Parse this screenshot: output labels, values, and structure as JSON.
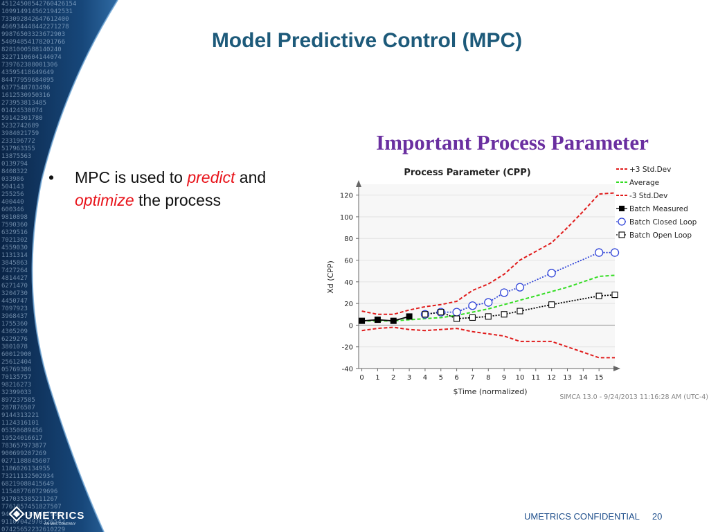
{
  "slide": {
    "title": "Model Predictive Control (MPC)",
    "bullet": {
      "marker": "•",
      "part1": "MPC is used to ",
      "predict": "predict",
      "part2": " and",
      "optimize": "optimize",
      "part3": " the process"
    },
    "chart_heading": "Important Process Parameter",
    "footer": "UMETRICS CONFIDENTIAL",
    "page_number": "20",
    "logo_text": "UMETRICS",
    "logo_sub": "AN MKS COMPANY",
    "colors": {
      "title": "#1d5a7a",
      "accent_red": "#e8141b",
      "heading": "#6a2fa0",
      "sidebar": "#0b2c55"
    }
  },
  "chart_data": {
    "type": "line",
    "title": "Process Parameter (CPP)",
    "xlabel": "$Time (normalized)",
    "ylabel": "Xd (CPP)",
    "footnote": "SIMCA 13.0 - 9/24/2013 11:16:28 AM (UTC-4)",
    "xlim": [
      -0.2,
      16
    ],
    "ylim": [
      -40,
      130
    ],
    "x_ticks": [
      0,
      1,
      2,
      3,
      4,
      5,
      6,
      7,
      8,
      9,
      10,
      11,
      12,
      13,
      14,
      15
    ],
    "y_ticks": [
      -40,
      -20,
      0,
      20,
      40,
      60,
      80,
      100,
      120
    ],
    "grid": true,
    "legend_position": "top-right",
    "series": [
      {
        "name": "+3 Std.Dev",
        "style": "dashed",
        "color": "#e01b1b",
        "x": [
          0,
          1,
          2,
          3,
          4,
          5,
          6,
          7,
          8,
          9,
          10,
          11,
          12,
          13,
          14,
          15,
          16
        ],
        "y": [
          13,
          10,
          10,
          14,
          17,
          19,
          22,
          32,
          38,
          47,
          60,
          68,
          76,
          90,
          105,
          121,
          122
        ]
      },
      {
        "name": "Average",
        "style": "dashed",
        "color": "#33dd22",
        "x": [
          0,
          1,
          2,
          3,
          4,
          5,
          6,
          7,
          8,
          9,
          10,
          11,
          12,
          13,
          14,
          15,
          16
        ],
        "y": [
          4,
          4,
          4,
          5,
          6,
          7,
          9,
          12,
          15,
          19,
          23,
          27,
          31,
          35,
          40,
          45,
          46
        ]
      },
      {
        "name": "-3 Std.Dev",
        "style": "dashed",
        "color": "#e01b1b",
        "x": [
          0,
          1,
          2,
          3,
          4,
          5,
          6,
          7,
          8,
          9,
          10,
          11,
          12,
          13,
          14,
          15,
          16
        ],
        "y": [
          -5,
          -3,
          -2,
          -4,
          -5,
          -4,
          -3,
          -6,
          -8,
          -10,
          -15,
          -15,
          -15,
          -20,
          -25,
          -30,
          -30
        ]
      },
      {
        "name": "Batch Measured",
        "marker": "filled-square",
        "color": "#000000",
        "x": [
          0,
          1,
          2,
          3
        ],
        "y": [
          4,
          5,
          4,
          8
        ]
      },
      {
        "name": "Batch Closed Loop",
        "marker": "open-circle",
        "color": "#3044d8",
        "x": [
          4,
          5,
          6,
          7,
          8,
          9,
          10,
          12,
          15,
          16
        ],
        "y": [
          10,
          12,
          12,
          18,
          21,
          30,
          35,
          48,
          67,
          67
        ]
      },
      {
        "name": "Batch Open Loop",
        "marker": "open-square",
        "color": "#000000",
        "x": [
          4,
          5,
          6,
          7,
          8,
          9,
          10,
          12,
          15,
          16
        ],
        "y": [
          10,
          12,
          6,
          7,
          8,
          10,
          13,
          19,
          27,
          28
        ]
      }
    ]
  }
}
